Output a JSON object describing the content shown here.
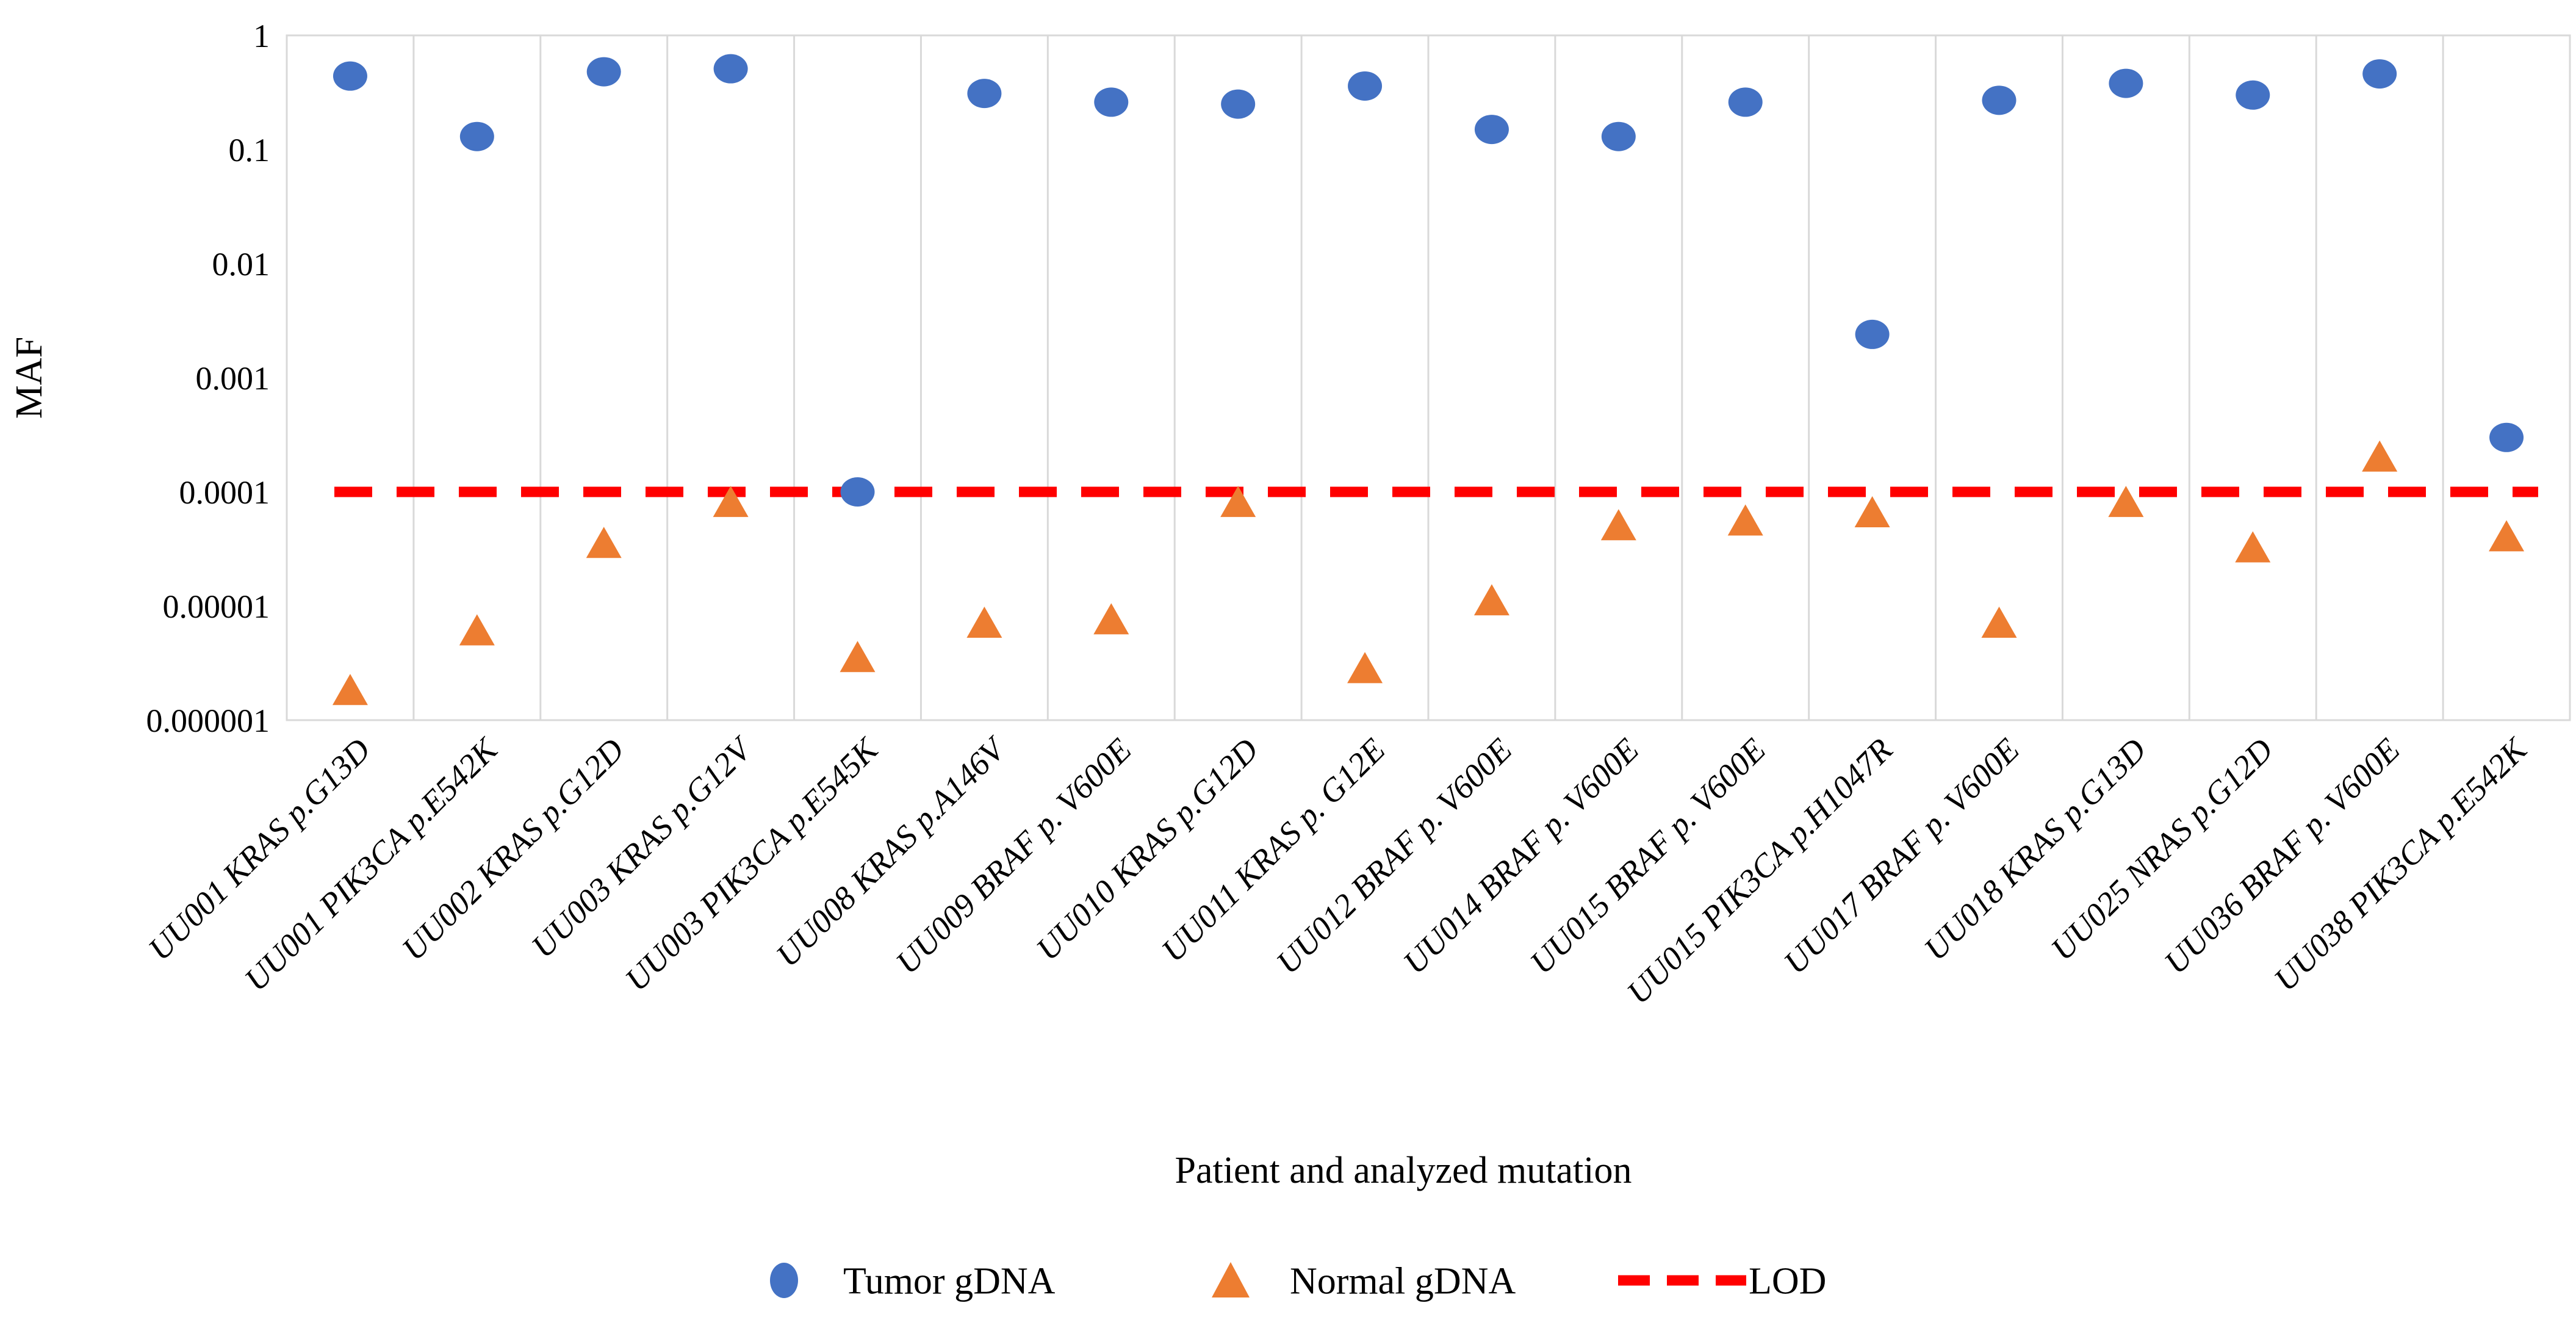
{
  "chart_data": {
    "type": "scatter",
    "title": "",
    "xlabel": "Patient and analyzed mutation",
    "ylabel": "MAF",
    "y_scale": "log10",
    "ylim": [
      1e-06,
      1
    ],
    "y_ticks": [
      "1",
      "0.1",
      "0.01",
      "0.001",
      "0.0001",
      "0.00001",
      "0.000001"
    ],
    "grid": "vertical-only",
    "grid_color": "#D9D9D9",
    "legend_position": "bottom",
    "categories": [
      "UU001 KRAS p.G13D",
      "UU001 PIK3CA p.E542K",
      "UU002 KRAS p.G12D",
      "UU003 KRAS p.G12V",
      "UU003 PIK3CA p.E545K",
      "UU008 KRAS p.A146V",
      "UU009 BRAF p. V600E",
      "UU010 KRAS p.G12D",
      "UU011 KRAS p. G12E",
      "UU012 BRAF p. V600E",
      "UU014 BRAF p. V600E",
      "UU015 BRAF p. V600E",
      "UU015 PIK3CA p.H1047R",
      "UU017 BRAF p. V600E",
      "UU018 KRAS p.G13D",
      "UU025 NRAS p.G12D",
      "UU036 BRAF p. V600E",
      "UU038 PIK3CA p.E542K"
    ],
    "series": [
      {
        "name": "Tumor gDNA",
        "marker": "circle",
        "color": "#4472C4",
        "values": [
          0.44,
          0.13,
          0.48,
          0.51,
          0.0001,
          0.31,
          0.26,
          0.25,
          0.36,
          0.15,
          0.13,
          0.26,
          0.0024,
          0.27,
          0.38,
          0.3,
          0.46,
          0.0003
        ]
      },
      {
        "name": "Normal gDNA",
        "marker": "triangle",
        "color": "#ED7D31",
        "values": [
          1.8e-06,
          6e-06,
          3.5e-05,
          8e-05,
          3.5e-06,
          7e-06,
          7.5e-06,
          8e-05,
          2.8e-06,
          1.1e-05,
          5e-05,
          5.5e-05,
          6.5e-05,
          7e-06,
          8e-05,
          3.2e-05,
          0.0002,
          4e-05
        ]
      }
    ],
    "reference_line": {
      "name": "LOD",
      "value": 0.0001,
      "color": "#FF0000",
      "style": "dashed"
    }
  }
}
